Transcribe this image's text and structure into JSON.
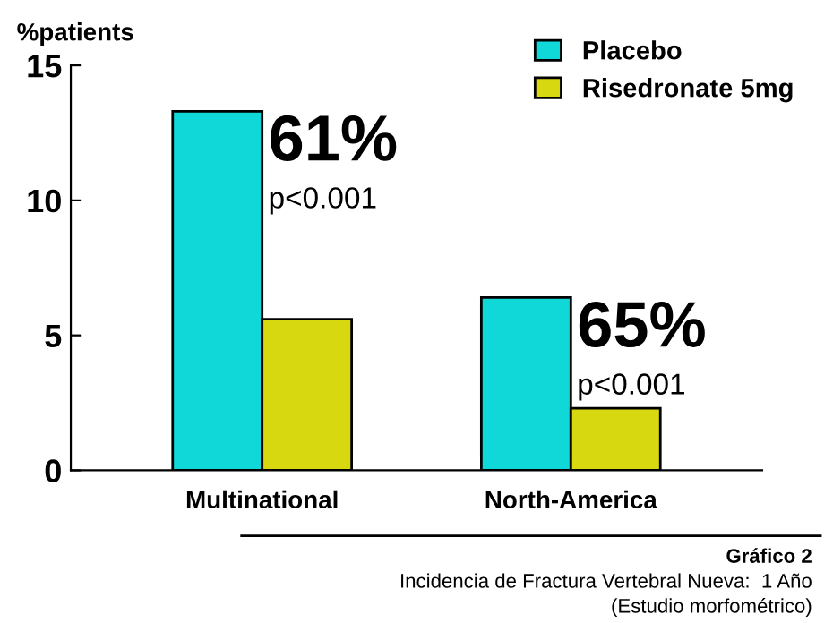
{
  "chart_data": {
    "type": "bar",
    "ylabel": "%patients",
    "categories": [
      "Multinational",
      "North-America"
    ],
    "series": [
      {
        "name": "Placebo",
        "color": "#10d8d8",
        "values": [
          13.3,
          6.4
        ]
      },
      {
        "name": "Risedronate 5mg",
        "color": "#d8d810",
        "values": [
          5.6,
          2.3
        ]
      }
    ],
    "ylim": [
      0,
      15
    ],
    "yticks": [
      0,
      5,
      10,
      15
    ],
    "grid": false,
    "legend": "top right",
    "annotations": [
      "61%",
      "p<0.001",
      "65%",
      "p<0.001",
      "Gráfico 2",
      "Incidencia de Fractura Vertebral Nueva:  1 Año",
      "(Estudio morfométrico)"
    ]
  }
}
